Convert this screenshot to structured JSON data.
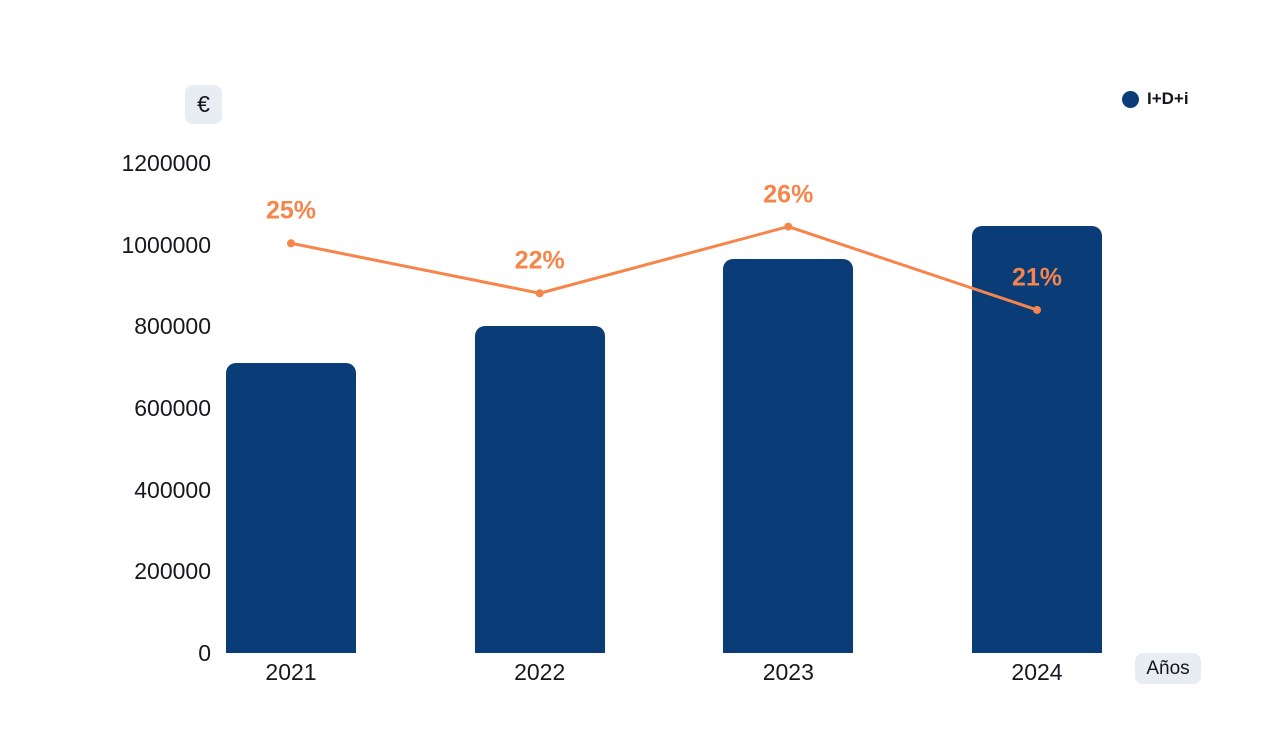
{
  "axes": {
    "y_unit_badge": "€",
    "x_unit_badge": "Años"
  },
  "legend": {
    "items": [
      {
        "label": "I+D+i",
        "color": "#0A3C78"
      }
    ]
  },
  "chart_data": {
    "type": "bar",
    "title": "",
    "categories": [
      "2021",
      "2022",
      "2023",
      "2024"
    ],
    "series": [
      {
        "name": "I+D+i",
        "type": "bar",
        "color": "#0A3C78",
        "values": [
          710000,
          800000,
          965000,
          1045000
        ]
      },
      {
        "name": "porcentaje",
        "type": "line",
        "color": "#F5854A",
        "unit": "%",
        "values": [
          25,
          22,
          26,
          21
        ],
        "labels": [
          "25%",
          "22%",
          "26%",
          "21%"
        ]
      }
    ],
    "xlabel": "Años",
    "ylabel": "€",
    "ylim": [
      0,
      1200000
    ],
    "yticks": [
      0,
      200000,
      400000,
      600000,
      800000,
      1000000,
      1200000
    ],
    "ytick_labels": [
      "0",
      "200000",
      "400000",
      "600000",
      "800000",
      "1000000",
      "1200000"
    ],
    "grid": false,
    "legend_position": "top-right"
  }
}
